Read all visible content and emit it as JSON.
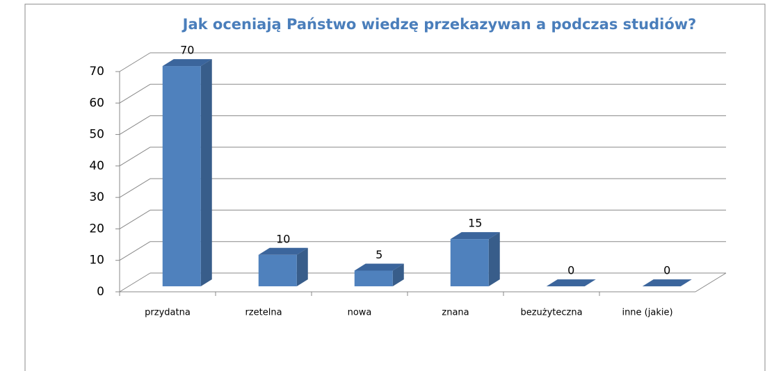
{
  "chart_data": {
    "type": "bar3d",
    "title": "Jak oceniają Państwo wiedzę przekazywan a podczas studiów?",
    "categories": [
      "przydatna",
      "rzetelna",
      "nowa",
      "znana",
      "bezużyteczna",
      "inne (jakie)"
    ],
    "values": [
      70,
      10,
      5,
      15,
      0,
      0
    ],
    "color": "#4f81bd",
    "ylim": [
      0,
      70
    ],
    "yticks": [
      0,
      10,
      20,
      30,
      40,
      50,
      60,
      70
    ],
    "grid": true
  }
}
